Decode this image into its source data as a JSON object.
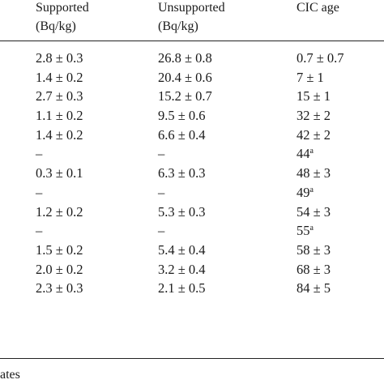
{
  "table": {
    "headers": [
      [
        "Supported",
        "(Bq/kg)"
      ],
      [
        "Unsupported",
        "(Bq/kg)"
      ],
      [
        "CIC age",
        ""
      ]
    ],
    "rows": [
      {
        "supported": "2.8 ± 0.3",
        "unsupported": "26.8 ± 0.8",
        "age": "0.7 ± 0.7",
        "age_sup": ""
      },
      {
        "supported": "1.4 ± 0.2",
        "unsupported": "20.4 ± 0.6",
        "age": "7 ± 1",
        "age_sup": ""
      },
      {
        "supported": "2.7 ± 0.3",
        "unsupported": "15.2 ± 0.7",
        "age": "15 ± 1",
        "age_sup": ""
      },
      {
        "supported": "1.1 ± 0.2",
        "unsupported": "9.5 ± 0.6",
        "age": "32 ± 2",
        "age_sup": ""
      },
      {
        "supported": "1.4 ± 0.2",
        "unsupported": "6.6 ± 0.4",
        "age": "42 ± 2",
        "age_sup": ""
      },
      {
        "supported": "–",
        "unsupported": "–",
        "age": "44",
        "age_sup": "a"
      },
      {
        "supported": "0.3 ± 0.1",
        "unsupported": "6.3 ± 0.3",
        "age": "48 ± 3",
        "age_sup": ""
      },
      {
        "supported": "–",
        "unsupported": "–",
        "age": "49",
        "age_sup": "a"
      },
      {
        "supported": "1.2 ± 0.2",
        "unsupported": "5.3 ± 0.3",
        "age": "54 ± 3",
        "age_sup": ""
      },
      {
        "supported": "–",
        "unsupported": "–",
        "age": "55",
        "age_sup": "a"
      },
      {
        "supported": "1.5 ± 0.2",
        "unsupported": "5.4 ± 0.4",
        "age": "58 ± 3",
        "age_sup": ""
      },
      {
        "supported": "2.0 ± 0.2",
        "unsupported": "3.2 ± 0.4",
        "age": "68 ± 3",
        "age_sup": ""
      },
      {
        "supported": "2.3 ± 0.3",
        "unsupported": "2.1 ± 0.5",
        "age": "84 ± 5",
        "age_sup": ""
      }
    ]
  },
  "footnote": "ates"
}
